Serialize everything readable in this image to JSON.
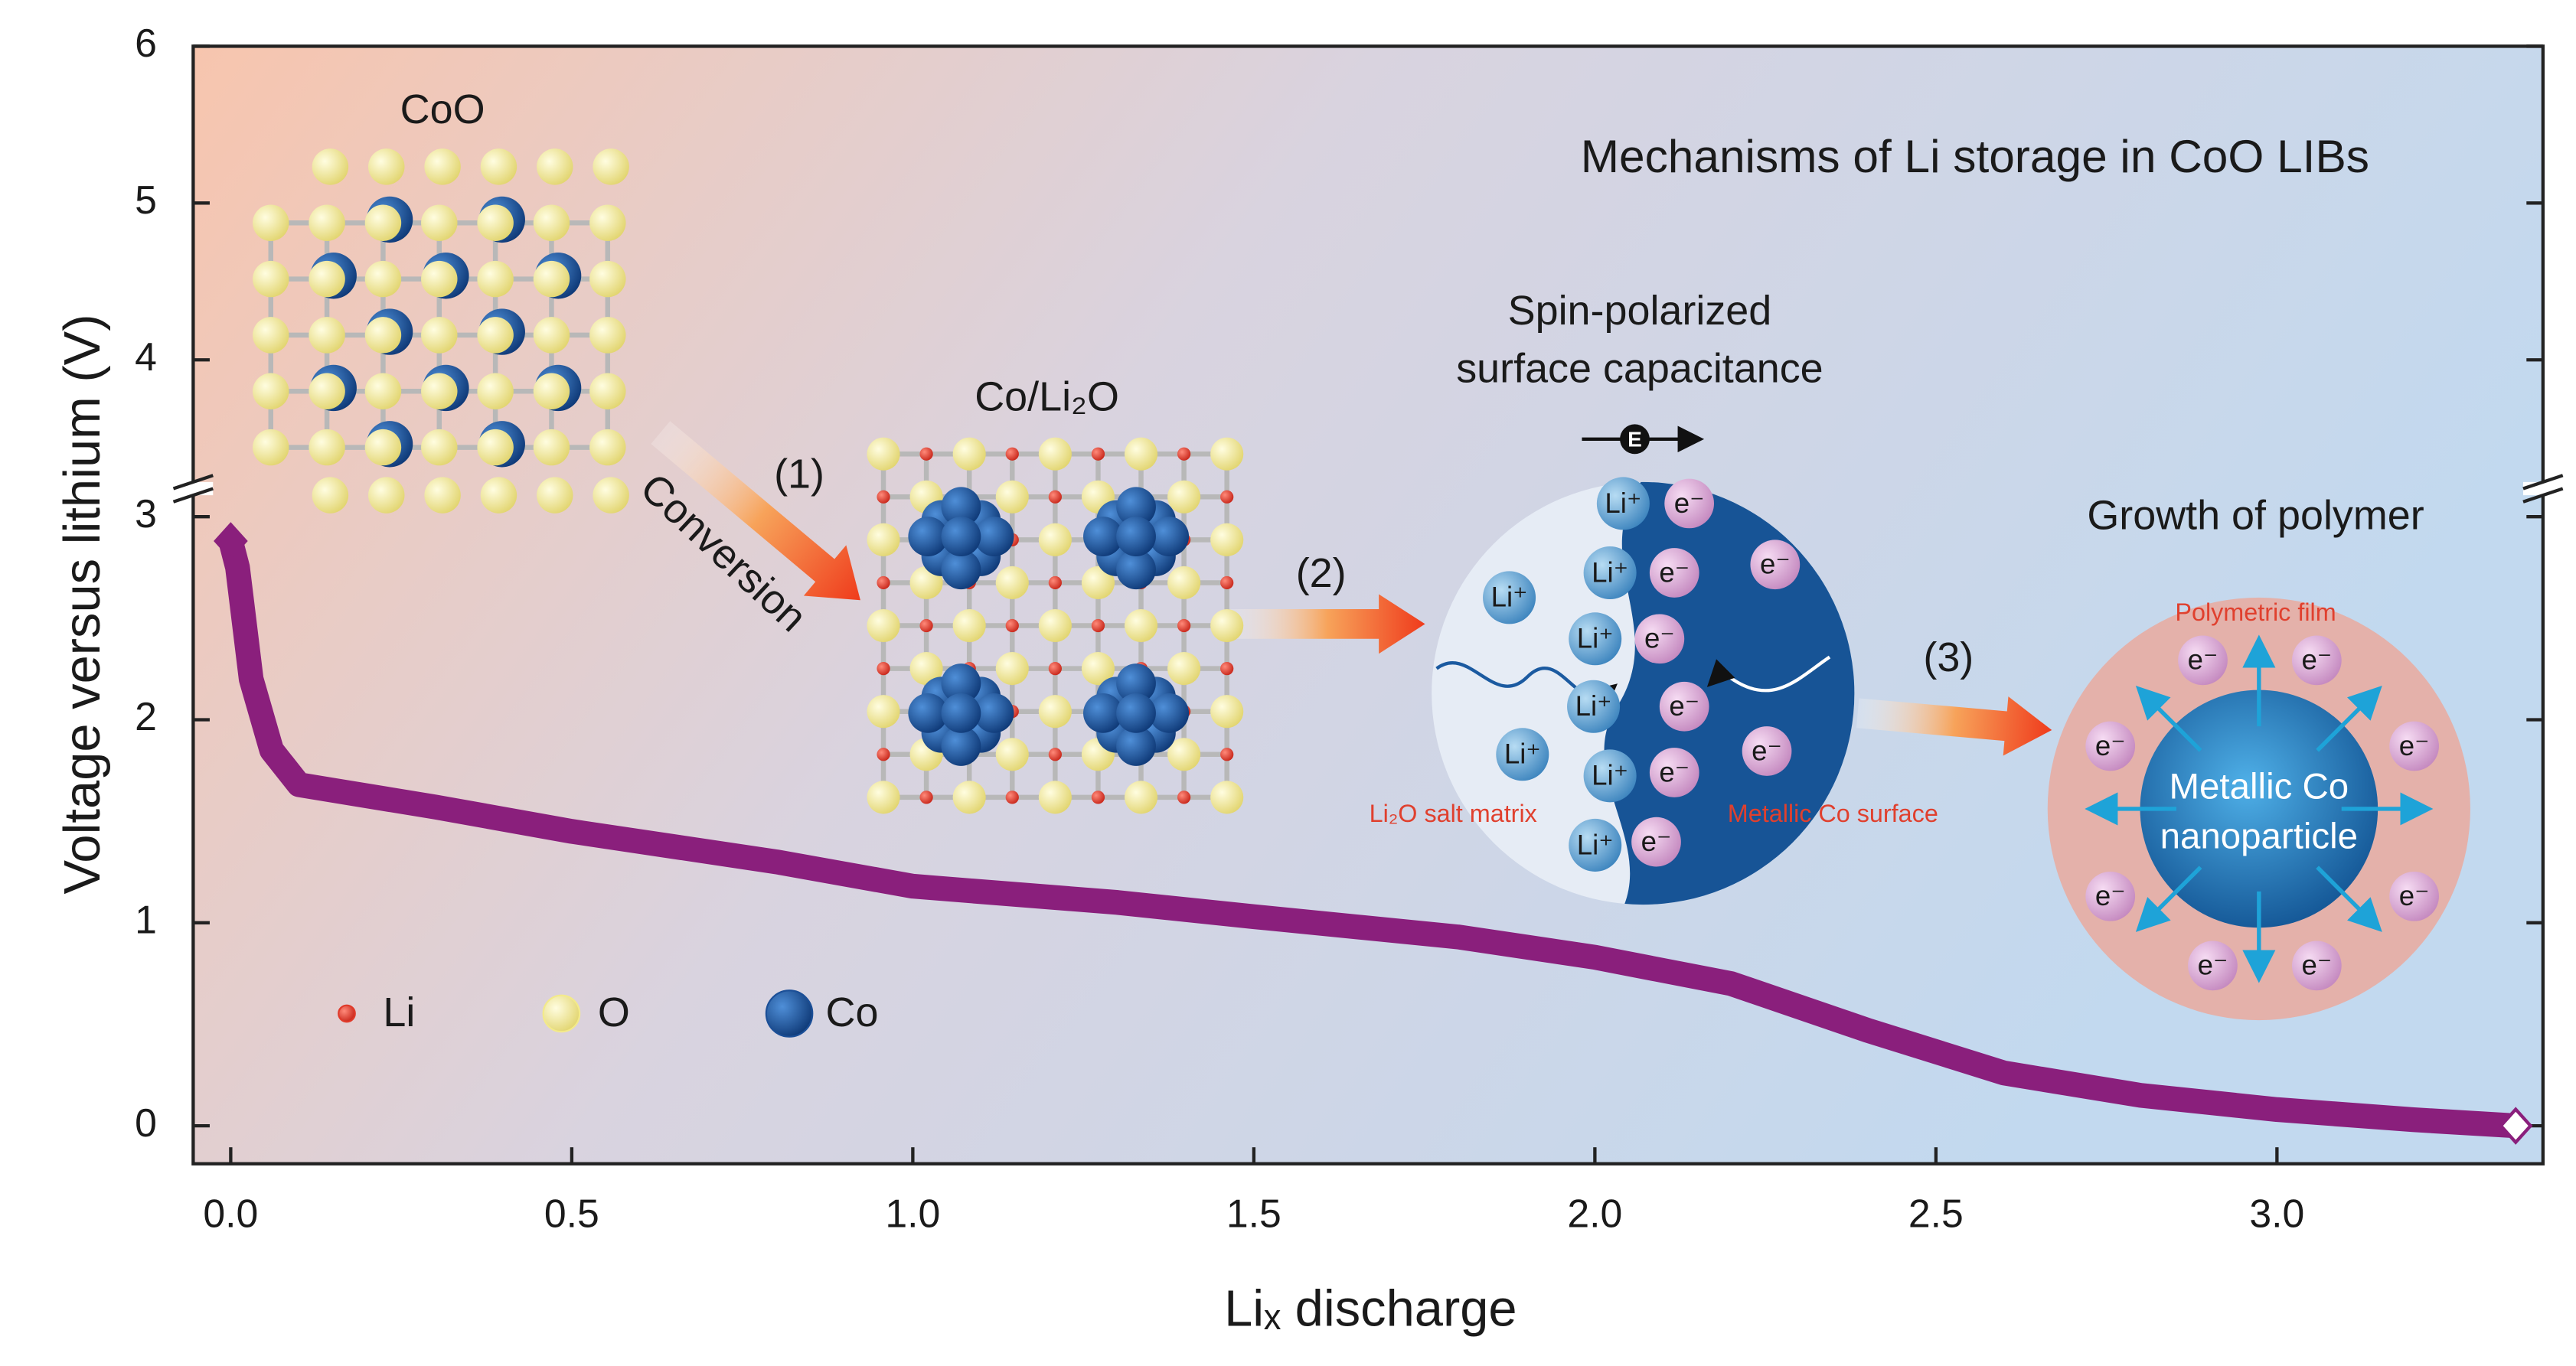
{
  "chart_data": {
    "type": "line",
    "title": "Mechanisms of Li storage in CoO LIBs",
    "x_label": "Liₓ discharge",
    "y_label": "Voltage versus lithium (V)",
    "x": [
      0,
      0.01,
      0.03,
      0.06,
      0.1,
      0.3,
      0.5,
      0.8,
      1.0,
      1.3,
      1.5,
      1.8,
      2.0,
      2.2,
      2.4,
      2.6,
      2.8,
      3.0,
      3.2,
      3.35
    ],
    "values": [
      2.88,
      2.75,
      2.2,
      1.85,
      1.68,
      1.57,
      1.45,
      1.3,
      1.18,
      1.1,
      1.03,
      0.93,
      0.83,
      0.7,
      0.47,
      0.26,
      0.15,
      0.08,
      0.03,
      0.0
    ],
    "color": "#8a1f7c",
    "xlim": [
      -0.055,
      3.39
    ],
    "xticks": [
      {
        "value": 0,
        "label": "0.0"
      },
      0.5,
      {
        "value": 1,
        "label": "1.0"
      },
      1.5,
      {
        "value": 2,
        "label": "2.0"
      },
      2.5,
      {
        "value": 3,
        "label": "3.0"
      }
    ],
    "ylim": [
      0,
      6
    ],
    "y_break": 3,
    "yticks": [
      0,
      1,
      2,
      3,
      4,
      5,
      6
    ],
    "legend": [
      {
        "name": "Li",
        "color": "#e03a2a"
      },
      {
        "name": "O",
        "color": "#f3ea8a"
      },
      {
        "name": "Co",
        "color": "#1b4f97"
      }
    ],
    "annotations": {
      "coo": "CoO",
      "co_li2o": "Co/Li₂O",
      "step1": "(1)",
      "conversion": "Conversion",
      "step2": "(2)",
      "step3": "(3)",
      "capacitance": [
        "Spin-polarized",
        "surface capacitance"
      ],
      "field": "E",
      "ion": "Li⁺",
      "electron": "e⁻",
      "matrix": "Li₂O salt matrix",
      "surface": "Metallic Co surface",
      "growth": "Growth of polymer",
      "film": "Polymetric film",
      "core": [
        "Metallic Co",
        "nanoparticle"
      ]
    }
  }
}
